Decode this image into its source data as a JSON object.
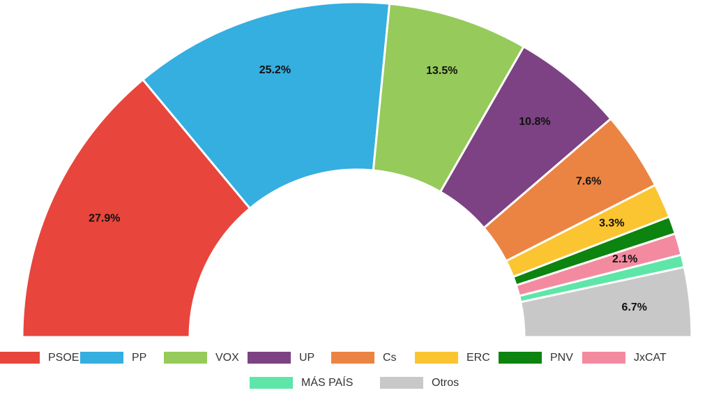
{
  "chart_data": {
    "type": "half-donut",
    "series": [
      {
        "name": "PSOE",
        "color": "#e8453c"
      },
      {
        "name": "PP",
        "color": "#35aee0"
      },
      {
        "name": "VOX",
        "color": "#96ca5a"
      },
      {
        "name": "UP",
        "color": "#7c4283"
      },
      {
        "name": "Cs",
        "color": "#eb8443"
      },
      {
        "name": "ERC",
        "color": "#fbc531"
      },
      {
        "name": "PNV",
        "color": "#0c840f"
      },
      {
        "name": "JxCAT",
        "color": "#f48aa0"
      },
      {
        "name": "MÁS PAÍS",
        "color": "#5ee6a8"
      },
      {
        "name": "Otros",
        "color": "#c8c8c8"
      }
    ],
    "values": [
      27.9,
      25.2,
      13.5,
      10.8,
      7.6,
      3.3,
      1.7,
      2.1,
      1.2,
      6.7
    ],
    "value_labels": [
      "27.9%",
      "25.2%",
      "13.5%",
      "10.8%",
      "7.6%",
      "3.3%",
      null,
      "2.1%",
      null,
      "6.7%"
    ]
  }
}
